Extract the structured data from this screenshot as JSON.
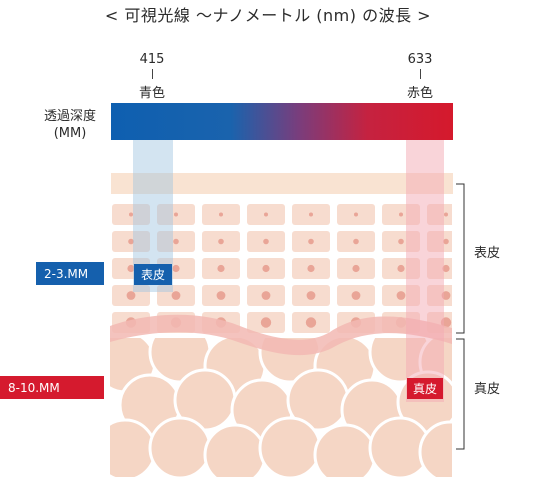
{
  "title": "< 可視光線 〜ナノメートル (nm) の波長 >",
  "wavelengths": {
    "blue": {
      "value": "415",
      "color_name": "青色"
    },
    "red": {
      "value": "633",
      "color_name": "赤色"
    }
  },
  "depth_label": {
    "line1": "透過深度",
    "line2": "(MM)"
  },
  "layers": {
    "epidermis": "表皮",
    "dermis": "真皮"
  },
  "badges": {
    "blue_depth": "2-3.MM",
    "red_depth": "8-10.MM",
    "blue_layer": "表皮",
    "red_layer": "真皮"
  },
  "colors": {
    "blue": "#1560ad",
    "red": "#d51a2e",
    "skin": "#f4d4c3",
    "cell_dot": "#e8a89a"
  }
}
